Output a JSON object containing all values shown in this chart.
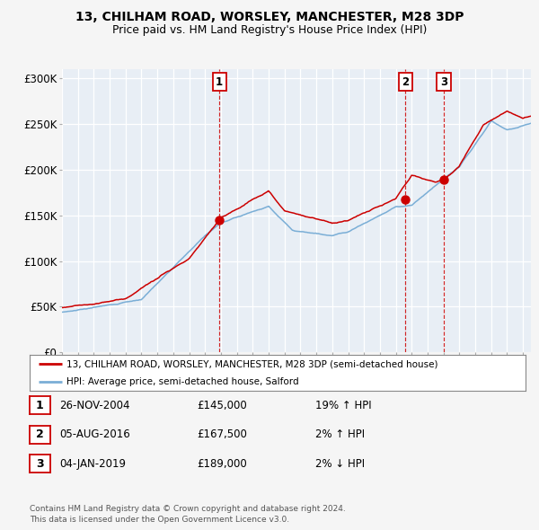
{
  "title": "13, CHILHAM ROAD, WORSLEY, MANCHESTER, M28 3DP",
  "subtitle": "Price paid vs. HM Land Registry's House Price Index (HPI)",
  "ylim": [
    0,
    310000
  ],
  "yticks": [
    0,
    50000,
    100000,
    150000,
    200000,
    250000,
    300000
  ],
  "ytick_labels": [
    "£0",
    "£50K",
    "£100K",
    "£150K",
    "£200K",
    "£250K",
    "£300K"
  ],
  "background_color": "#f5f5f5",
  "plot_background": "#e8eef5",
  "grid_color": "#ffffff",
  "red_line_color": "#cc0000",
  "blue_line_color": "#7aaed6",
  "annotation_box_color": "#cc0000",
  "sale_years": [
    2004.9,
    2016.6,
    2019.02
  ],
  "sale_prices": [
    145000,
    167500,
    189000
  ],
  "sale_labels": [
    "1",
    "2",
    "3"
  ],
  "legend_entries": [
    "13, CHILHAM ROAD, WORSLEY, MANCHESTER, M28 3DP (semi-detached house)",
    "HPI: Average price, semi-detached house, Salford"
  ],
  "table_rows": [
    {
      "num": "1",
      "date": "26-NOV-2004",
      "price": "£145,000",
      "hpi": "19% ↑ HPI"
    },
    {
      "num": "2",
      "date": "05-AUG-2016",
      "price": "£167,500",
      "hpi": "2% ↑ HPI"
    },
    {
      "num": "3",
      "date": "04-JAN-2019",
      "price": "£189,000",
      "hpi": "2% ↓ HPI"
    }
  ],
  "footnote": "Contains HM Land Registry data © Crown copyright and database right 2024.\nThis data is licensed under the Open Government Licence v3.0.",
  "xmin": 1995,
  "xmax": 2024.5
}
